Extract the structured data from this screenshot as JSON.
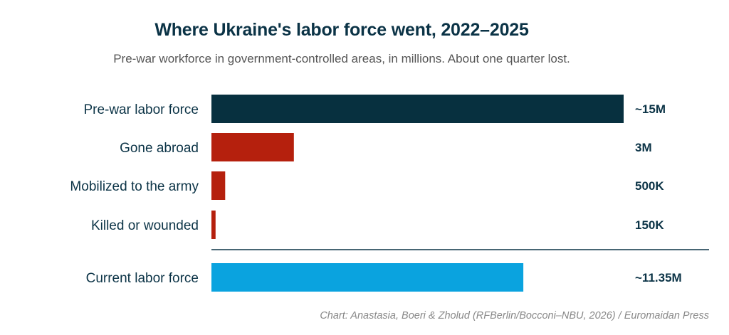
{
  "chart_data": {
    "type": "bar",
    "orientation": "horizontal",
    "title": "Where Ukraine's labor force went, 2022–2025",
    "subtitle": "Pre-war workforce in government-controlled areas, in millions. About one quarter lost.",
    "source": "Chart: Anastasia, Boeri & Zholud (RFBerlin/Bocconi–NBU, 2026) / Euromaidan Press",
    "categories": [
      "Pre-war labor force",
      "Gone abroad",
      "Mobilized to the army",
      "Killed or wounded",
      "Current labor force"
    ],
    "values": [
      15,
      3,
      0.5,
      0.15,
      11.35
    ],
    "value_labels": [
      "~15M",
      "3M",
      "500K",
      "150K",
      "~11.35M"
    ],
    "colors": [
      "#07303f",
      "#b5200d",
      "#b5200d",
      "#b5200d",
      "#0aa3df"
    ],
    "separator_before_index": 4,
    "xlim": [
      0,
      15
    ],
    "grid": false,
    "legend": "none"
  }
}
